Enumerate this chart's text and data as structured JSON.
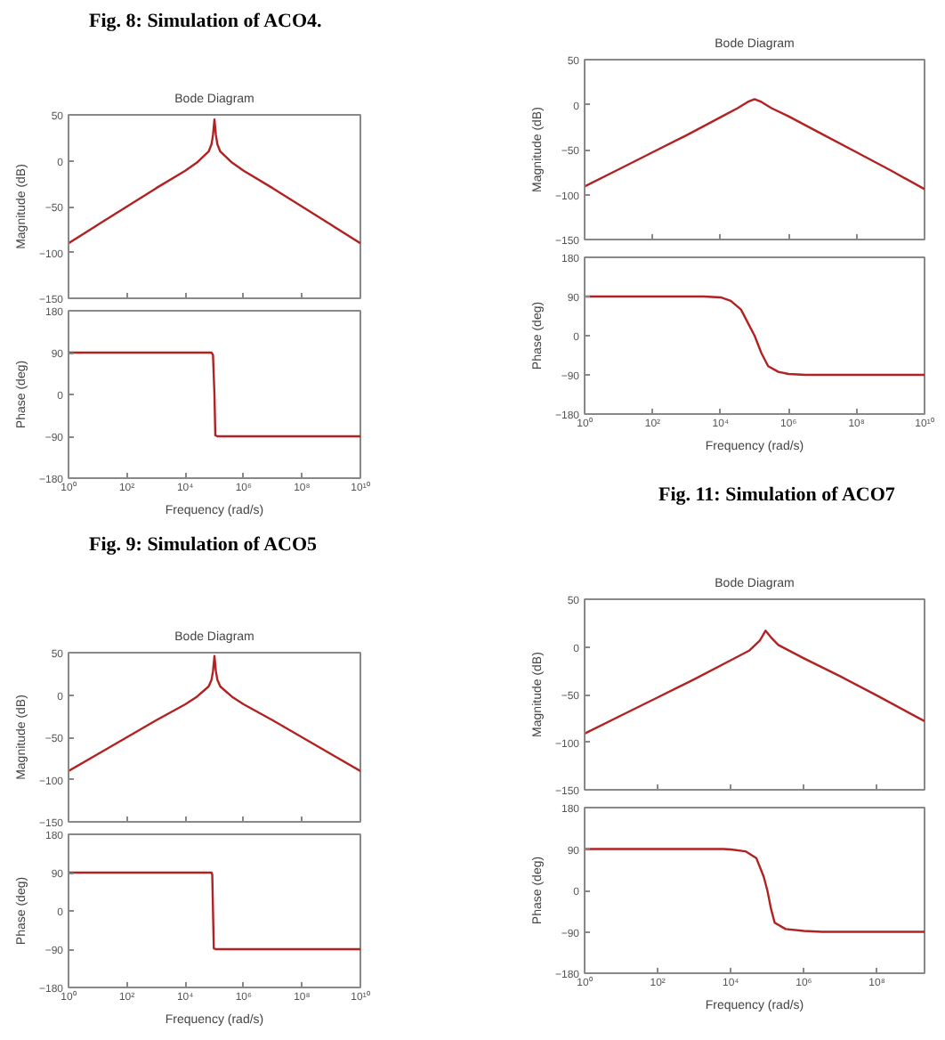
{
  "chart_data": [
    {
      "type": "line",
      "title": "Bode Diagram",
      "ylabel": "Magnitude (dB)",
      "annotations": [
        "Fig. 8: Simulation of ACO4."
      ],
      "log": "x",
      "xlim": [
        1,
        10000000000
      ],
      "ylim": [
        -150,
        50
      ],
      "xticks": [
        {
          "value": 1,
          "label": null
        },
        {
          "value": 100,
          "label": null
        },
        {
          "value": 10000,
          "label": null
        },
        {
          "value": 1000000,
          "label": null
        },
        {
          "value": 100000000,
          "label": null
        },
        {
          "value": 10000000000,
          "label": null
        }
      ],
      "yticks": [
        -150,
        -100,
        -50,
        0,
        50
      ],
      "tick_labels": "y",
      "series": [
        {
          "color": "#b22222",
          "x": [
            1,
            10,
            100,
            1000,
            10000,
            25119,
            63096,
            79433,
            89125,
            100000,
            112202,
            125893,
            158489,
            398107,
            1000000,
            10000000,
            100000000,
            1000000000,
            10000000000
          ],
          "values": [
            -90,
            -70,
            -50,
            -30,
            -11,
            -2,
            10,
            18,
            28,
            45,
            28,
            18,
            10,
            -2,
            -11,
            -30,
            -50,
            -70,
            -90
          ]
        }
      ]
    },
    {
      "type": "line",
      "ylabel": "Phase (deg)",
      "xlabel": "Frequency (rad/s)",
      "log": "x",
      "xlim": [
        1,
        10000000000
      ],
      "ylim": [
        -180,
        180
      ],
      "xticks": [
        {
          "value": 1,
          "label": "10⁰"
        },
        {
          "value": 100,
          "label": "10²"
        },
        {
          "value": 10000,
          "label": "10⁴"
        },
        {
          "value": 1000000,
          "label": "10⁶"
        },
        {
          "value": 100000000,
          "label": "10⁸"
        },
        {
          "value": 10000000000,
          "label": "10¹⁰"
        }
      ],
      "yticks": [
        -180,
        -90,
        0,
        90,
        180
      ],
      "series": [
        {
          "color": "#b22222",
          "x": [
            1,
            79433,
            89125,
            100000,
            107152,
            125893,
            10000000000
          ],
          "values": [
            90,
            90,
            85,
            0,
            -88,
            -90,
            -90
          ]
        }
      ]
    },
    {
      "type": "line",
      "title": "Bode Diagram",
      "ylabel": "Magnitude (dB)",
      "log": "x",
      "xlim": [
        1,
        10000000000
      ],
      "ylim": [
        -150,
        50
      ],
      "xticks": [
        {
          "value": 1,
          "label": null
        },
        {
          "value": 100,
          "label": null
        },
        {
          "value": 10000,
          "label": null
        },
        {
          "value": 1000000,
          "label": null
        },
        {
          "value": 100000000,
          "label": null
        },
        {
          "value": 10000000000,
          "label": null
        }
      ],
      "yticks": [
        -150,
        -100,
        -50,
        0,
        50
      ],
      "tick_labels": "y",
      "series": [
        {
          "color": "#b22222",
          "x": [
            1,
            10,
            100,
            1000,
            10000,
            31623,
            63096,
            100000,
            158489,
            316228,
            1000000,
            10000000,
            100000000,
            1000000000,
            10000000000
          ],
          "values": [
            -91,
            -72,
            -53,
            -34,
            -14,
            -4,
            3,
            6,
            3,
            -4,
            -13,
            -33,
            -53,
            -73,
            -94
          ]
        }
      ]
    },
    {
      "type": "line",
      "ylabel": "Phase (deg)",
      "xlabel": "Frequency (rad/s)",
      "annotations": [
        "Fig. 11: Simulation of ACO7"
      ],
      "log": "x",
      "xlim": [
        1,
        10000000000
      ],
      "ylim": [
        -180,
        180
      ],
      "xticks": [
        {
          "value": 1,
          "label": "10⁰"
        },
        {
          "value": 100,
          "label": "10²"
        },
        {
          "value": 10000,
          "label": "10⁴"
        },
        {
          "value": 1000000,
          "label": "10⁶"
        },
        {
          "value": 100000000,
          "label": "10⁸"
        },
        {
          "value": 10000000000,
          "label": "10¹⁰"
        }
      ],
      "yticks": [
        -180,
        -90,
        0,
        90,
        180
      ],
      "series": [
        {
          "color": "#b22222",
          "x": [
            1,
            3162,
            10000,
            19953,
            39811,
            63096,
            100000,
            158489,
            251189,
            501187,
            1000000,
            3162278,
            10000000000
          ],
          "values": [
            90,
            90,
            88,
            80,
            60,
            30,
            0,
            -40,
            -70,
            -83,
            -88,
            -90,
            -90
          ]
        }
      ]
    },
    {
      "type": "line",
      "title": "Bode Diagram",
      "ylabel": "Magnitude (dB)",
      "annotations": [
        "Fig. 9: Simulation of ACO5"
      ],
      "log": "x",
      "xlim": [
        1,
        10000000000
      ],
      "ylim": [
        -150,
        50
      ],
      "xticks": [
        {
          "value": 1,
          "label": null
        },
        {
          "value": 100,
          "label": null
        },
        {
          "value": 10000,
          "label": null
        },
        {
          "value": 1000000,
          "label": null
        },
        {
          "value": 100000000,
          "label": null
        },
        {
          "value": 10000000000,
          "label": null
        }
      ],
      "yticks": [
        -150,
        -100,
        -50,
        0,
        50
      ],
      "tick_labels": "y",
      "series": [
        {
          "color": "#b22222",
          "x": [
            1,
            10,
            100,
            1000,
            10000,
            25119,
            63096,
            79433,
            89125,
            100000,
            112202,
            125893,
            158489,
            398107,
            1000000,
            10000000,
            100000000,
            1000000000,
            10000000000
          ],
          "values": [
            -90,
            -70,
            -50,
            -30,
            -11,
            -2,
            10,
            18,
            28,
            46,
            28,
            18,
            10,
            -2,
            -11,
            -30,
            -50,
            -70,
            -90
          ]
        }
      ]
    },
    {
      "type": "line",
      "ylabel": "Phase (deg)",
      "xlabel": "Frequency (rad/s)",
      "log": "x",
      "xlim": [
        1,
        10000000000
      ],
      "ylim": [
        -180,
        180
      ],
      "xticks": [
        {
          "value": 1,
          "label": "10⁰"
        },
        {
          "value": 100,
          "label": "10²"
        },
        {
          "value": 10000,
          "label": "10⁴"
        },
        {
          "value": 1000000,
          "label": "10⁶"
        },
        {
          "value": 100000000,
          "label": "10⁸"
        },
        {
          "value": 10000000000,
          "label": "10¹⁰"
        }
      ],
      "yticks": [
        -180,
        -90,
        0,
        90,
        180
      ],
      "series": [
        {
          "color": "#b22222",
          "x": [
            1,
            79433,
            84140,
            89125,
            95000,
            112202,
            10000000000
          ],
          "values": [
            90,
            90,
            85,
            0,
            -88,
            -90,
            -90
          ]
        }
      ]
    },
    {
      "type": "line",
      "title": "Bode Diagram",
      "ylabel": "Magnitude (dB)",
      "log": "x",
      "xlim": [
        1,
        2000000000
      ],
      "ylim": [
        -150,
        50
      ],
      "xticks": [
        {
          "value": 1,
          "label": null
        },
        {
          "value": 100,
          "label": null
        },
        {
          "value": 10000,
          "label": null
        },
        {
          "value": 1000000,
          "label": null
        },
        {
          "value": 100000000,
          "label": null
        }
      ],
      "yticks": [
        -150,
        -100,
        -50,
        0,
        50
      ],
      "tick_labels": "y",
      "series": [
        {
          "color": "#b22222",
          "x": [
            1,
            10,
            100,
            1000,
            10000,
            31623,
            63096,
            89125,
            125893,
            199526,
            316228,
            1000000,
            10000000,
            100000000,
            2000000000
          ],
          "values": [
            -91,
            -72,
            -53,
            -34,
            -14,
            -4,
            7,
            17,
            10,
            2,
            -2,
            -12,
            -31,
            -51,
            -78
          ]
        }
      ]
    },
    {
      "type": "line",
      "ylabel": "Phase (deg)",
      "xlabel": "Frequency (rad/s)",
      "log": "x",
      "xlim": [
        1,
        2000000000
      ],
      "ylim": [
        -180,
        180
      ],
      "xticks": [
        {
          "value": 1,
          "label": "10⁰"
        },
        {
          "value": 100,
          "label": "10²"
        },
        {
          "value": 10000,
          "label": "10⁴"
        },
        {
          "value": 1000000,
          "label": "10⁶"
        },
        {
          "value": 100000000,
          "label": "10⁸"
        }
      ],
      "yticks": [
        -180,
        -90,
        0,
        90,
        180
      ],
      "series": [
        {
          "color": "#b22222",
          "x": [
            1,
            6310,
            10000,
            25119,
            50119,
            79433,
            100000,
            125893,
            158489,
            316228,
            1000000,
            3162278,
            2000000000
          ],
          "values": [
            90,
            90,
            89,
            85,
            70,
            30,
            0,
            -40,
            -70,
            -84,
            -88,
            -90,
            -90
          ]
        }
      ]
    }
  ]
}
